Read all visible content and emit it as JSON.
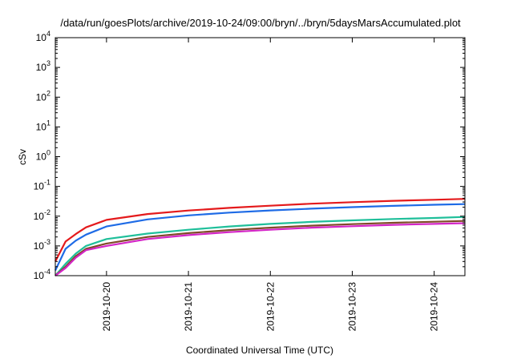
{
  "chart_data": {
    "type": "line",
    "title": "/data/run/goesPlots/archive/2019-10-24/09:00/bryn/../bryn/5daysMarsAccumulated.plot",
    "xlabel": "Coordinated Universal Time (UTC)",
    "ylabel": "cSv",
    "yscale": "log",
    "ylim": [
      0.0001,
      10000
    ],
    "y_ticks": [
      {
        "exp": "-4",
        "value": 0.0001
      },
      {
        "exp": "-3",
        "value": 0.001
      },
      {
        "exp": "-2",
        "value": 0.01
      },
      {
        "exp": "-1",
        "value": 0.1
      },
      {
        "exp": "0",
        "value": 1
      },
      {
        "exp": "1",
        "value": 10
      },
      {
        "exp": "2",
        "value": 100
      },
      {
        "exp": "3",
        "value": 1000
      },
      {
        "exp": "4",
        "value": 10000
      }
    ],
    "y_tick_base": "10",
    "xlim": [
      "2019-10-19 09:00",
      "2019-10-24 09:00"
    ],
    "x_ticks": [
      "2019-10-20",
      "2019-10-21",
      "2019-10-22",
      "2019-10-23",
      "2019-10-24"
    ],
    "x": [
      "2019-10-19 09:00",
      "2019-10-19 12:00",
      "2019-10-19 15:00",
      "2019-10-19 18:00",
      "2019-10-20 00:00",
      "2019-10-20 12:00",
      "2019-10-21 00:00",
      "2019-10-21 12:00",
      "2019-10-22 00:00",
      "2019-10-22 12:00",
      "2019-10-23 00:00",
      "2019-10-23 12:00",
      "2019-10-24 00:00",
      "2019-10-24 09:00"
    ],
    "grid": false,
    "legend": "none",
    "series": [
      {
        "color": "#e41a1c",
        "values": [
          0.0003,
          0.0014,
          0.0025,
          0.0042,
          0.0075,
          0.0118,
          0.0155,
          0.019,
          0.0225,
          0.0262,
          0.0296,
          0.0327,
          0.0355,
          0.038
        ]
      },
      {
        "color": "#1e6be6",
        "values": [
          0.00015,
          0.0008,
          0.0015,
          0.0024,
          0.0045,
          0.0078,
          0.0106,
          0.0132,
          0.0156,
          0.0179,
          0.0201,
          0.0222,
          0.0242,
          0.0255
        ]
      },
      {
        "color": "#1fbf9a",
        "values": [
          0.0001,
          0.00025,
          0.00055,
          0.001,
          0.0017,
          0.0026,
          0.0035,
          0.0045,
          0.0055,
          0.0064,
          0.0072,
          0.008,
          0.0087,
          0.0094
        ]
      },
      {
        "color": "#7f4a28",
        "values": [
          0.0001,
          0.0002,
          0.00045,
          0.0008,
          0.0012,
          0.002,
          0.0027,
          0.0034,
          0.0041,
          0.0048,
          0.0054,
          0.006,
          0.0065,
          0.0069
        ]
      },
      {
        "color": "#d425c7",
        "values": [
          0.0001,
          0.00018,
          0.0004,
          0.00072,
          0.001,
          0.0017,
          0.0023,
          0.0029,
          0.0035,
          0.0041,
          0.0046,
          0.0051,
          0.0055,
          0.0058
        ]
      }
    ]
  }
}
